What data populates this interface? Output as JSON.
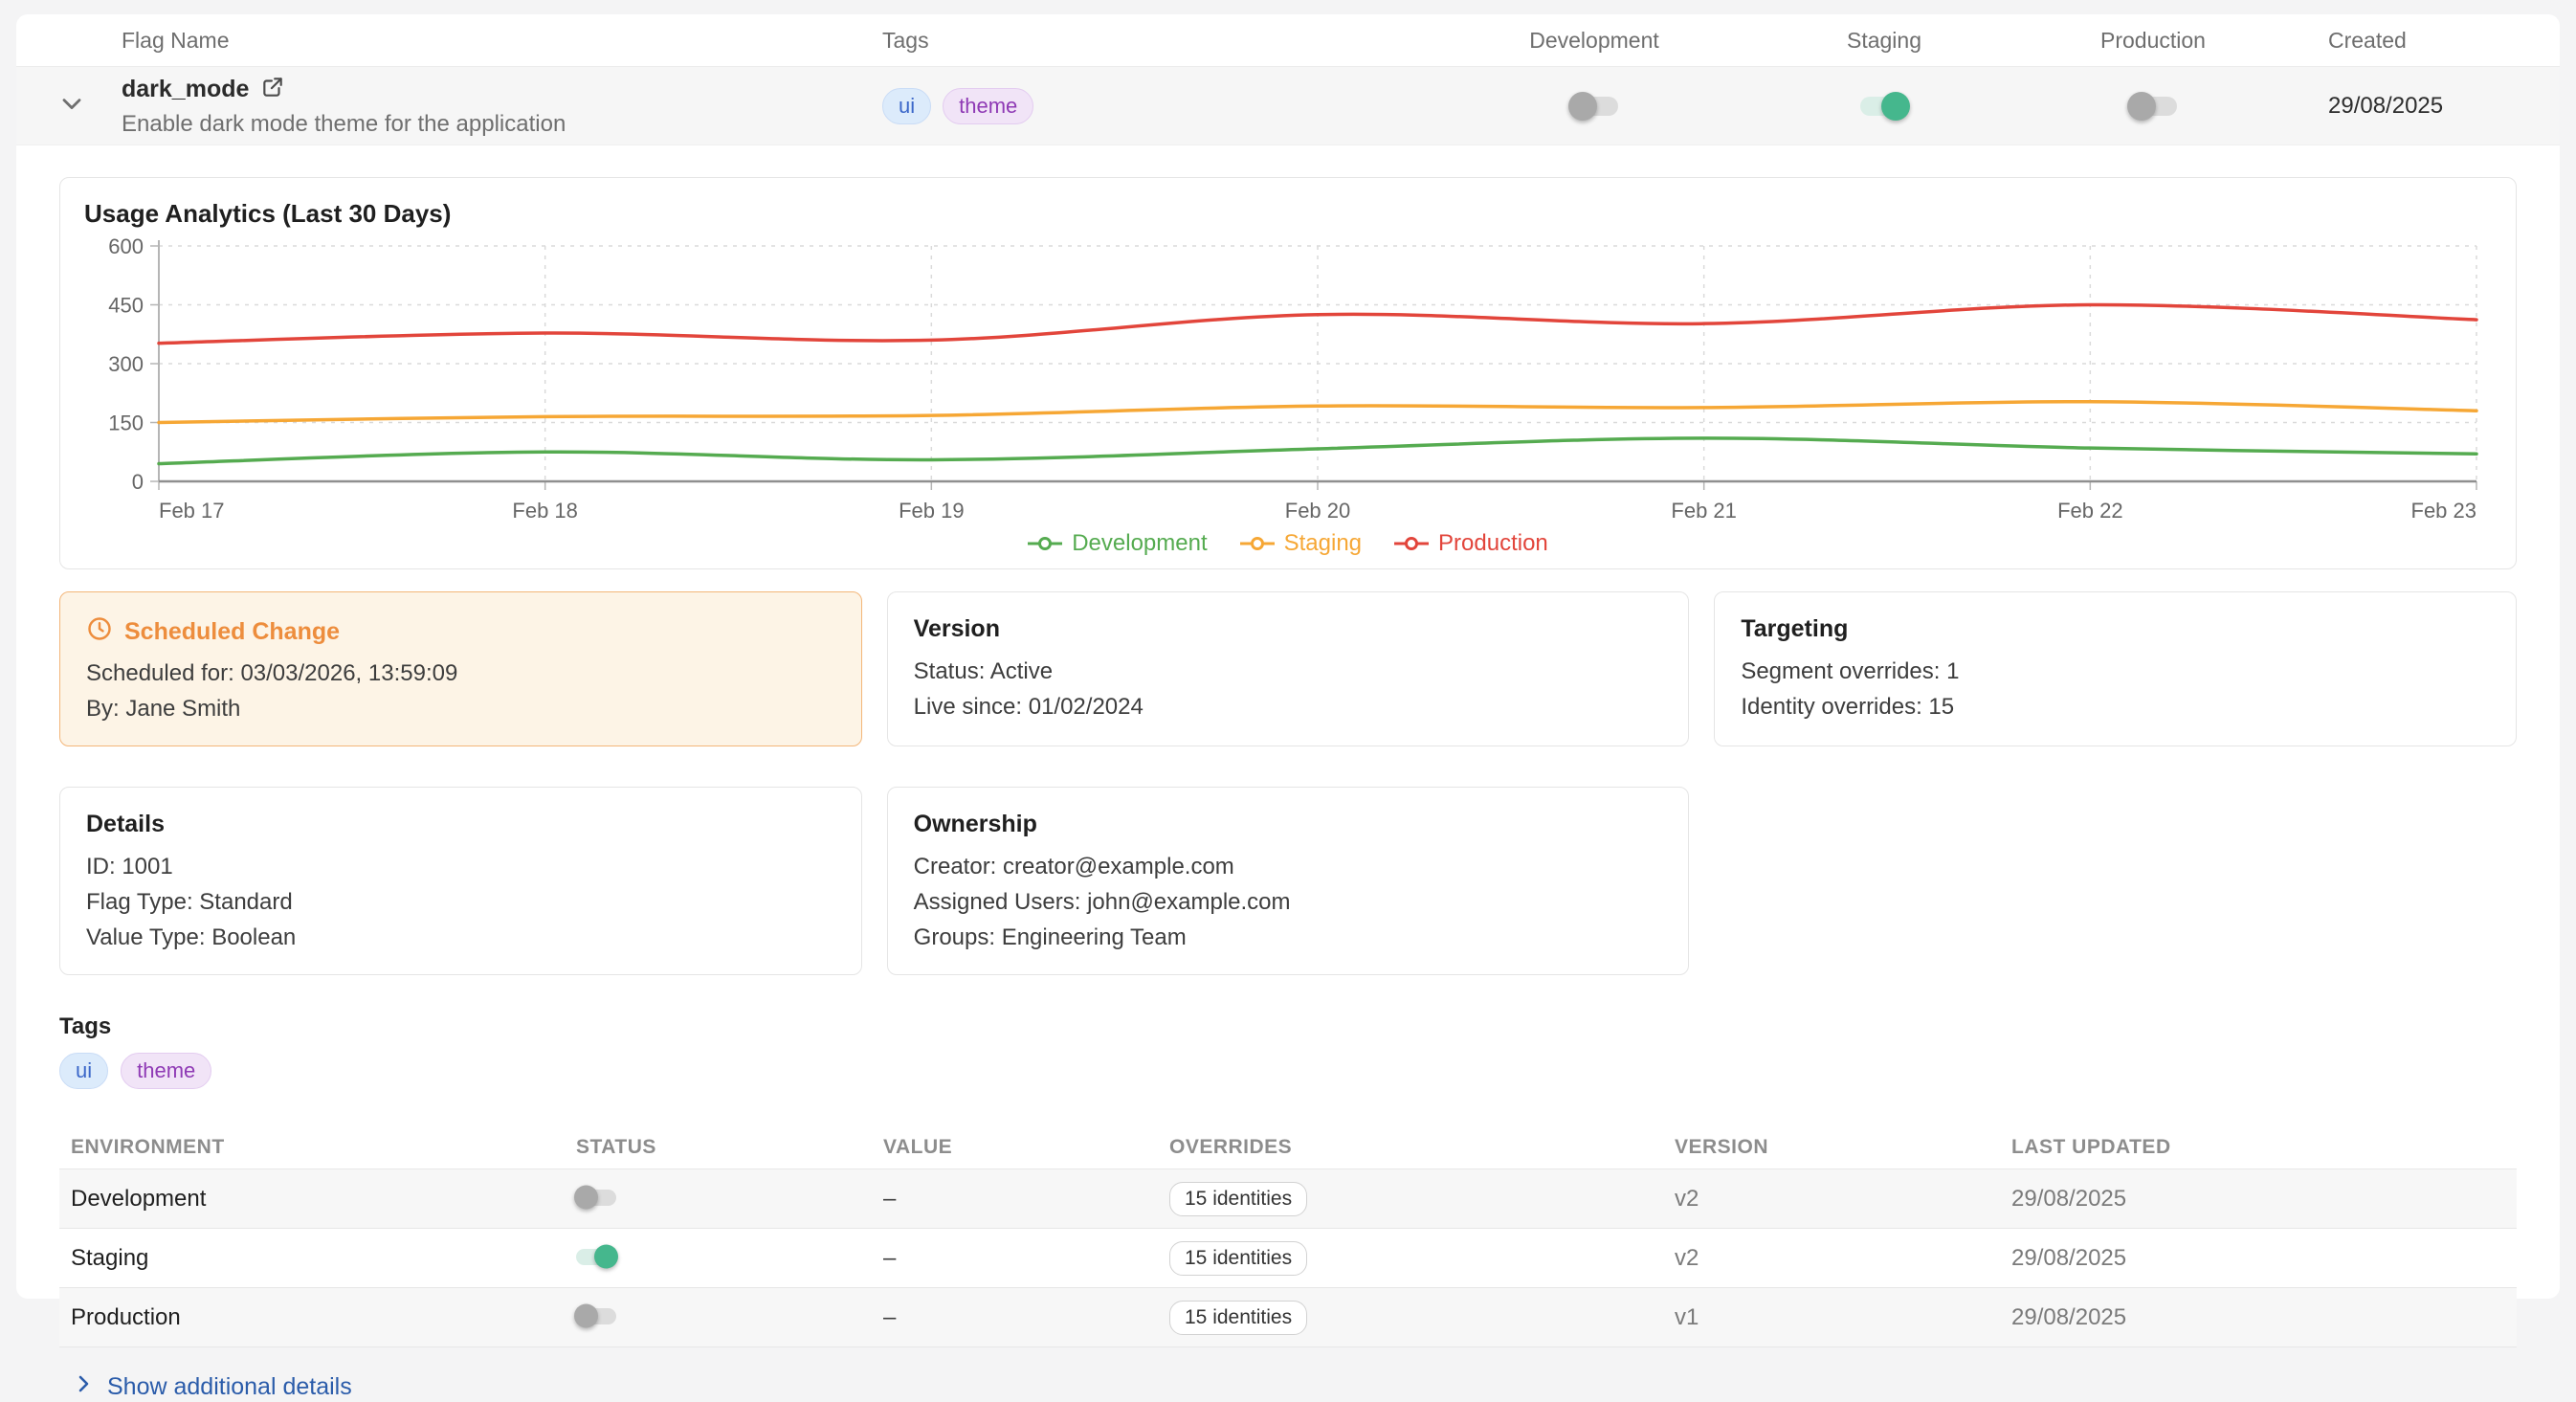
{
  "colors": {
    "link_blue": "#2b5caa",
    "toggle_on_green": "#45b78d",
    "scheduled_orange": "#ed8d3d"
  },
  "flag_table": {
    "columns": [
      "Flag Name",
      "Tags",
      "Development",
      "Staging",
      "Production",
      "Created"
    ],
    "row": {
      "name": "dark_mode",
      "description": "Enable dark mode theme for the application",
      "tags": [
        {
          "label": "ui",
          "variant": "blue"
        },
        {
          "label": "theme",
          "variant": "purple"
        }
      ],
      "toggles": {
        "development": false,
        "staging": true,
        "production": false
      },
      "created": "29/08/2025"
    }
  },
  "chart_data": {
    "type": "line",
    "title": "Usage Analytics (Last 30 Days)",
    "x": [
      "Feb 17",
      "Feb 18",
      "Feb 19",
      "Feb 20",
      "Feb 21",
      "Feb 22",
      "Feb 23"
    ],
    "series": [
      {
        "name": "Development",
        "color": "#55ab50",
        "values": [
          45,
          75,
          55,
          83,
          110,
          85,
          70
        ]
      },
      {
        "name": "Staging",
        "color": "#f6a735",
        "values": [
          150,
          165,
          168,
          192,
          188,
          203,
          180
        ]
      },
      {
        "name": "Production",
        "color": "#e2453b",
        "values": [
          352,
          378,
          360,
          425,
          402,
          450,
          412
        ]
      }
    ],
    "ylim": [
      0,
      600
    ],
    "yticks": [
      0,
      150,
      300,
      450,
      600
    ],
    "grid": true,
    "legend_position": "bottom"
  },
  "cards": {
    "scheduled": {
      "title": "Scheduled Change",
      "scheduled_for": "Scheduled for: 03/03/2026, 13:59:09",
      "by": "By: Jane Smith"
    },
    "version": {
      "title": "Version",
      "lines": [
        "Status: Active",
        "Live since: 01/02/2024"
      ]
    },
    "targeting": {
      "title": "Targeting",
      "lines": [
        "Segment overrides: 1",
        "Identity overrides: 15"
      ]
    },
    "details": {
      "title": "Details",
      "lines": [
        "ID: 1001",
        "Flag Type: Standard",
        "Value Type: Boolean"
      ]
    },
    "ownership": {
      "title": "Ownership",
      "lines": [
        "Creator: creator@example.com",
        "Assigned Users: john@example.com",
        "Groups: Engineering Team"
      ]
    }
  },
  "tags_section": {
    "title": "Tags",
    "tags": [
      {
        "label": "ui",
        "variant": "blue"
      },
      {
        "label": "theme",
        "variant": "purple"
      }
    ]
  },
  "environments_table": {
    "columns": [
      "ENVIRONMENT",
      "STATUS",
      "VALUE",
      "OVERRIDES",
      "VERSION",
      "LAST UPDATED"
    ],
    "rows": [
      {
        "environment": "Development",
        "status_on": false,
        "value": "–",
        "overrides": "15 identities",
        "version": "v2",
        "last_updated": "29/08/2025"
      },
      {
        "environment": "Staging",
        "status_on": true,
        "value": "–",
        "overrides": "15 identities",
        "version": "v2",
        "last_updated": "29/08/2025"
      },
      {
        "environment": "Production",
        "status_on": false,
        "value": "–",
        "overrides": "15 identities",
        "version": "v1",
        "last_updated": "29/08/2025"
      }
    ]
  },
  "footer": {
    "show_details": "Show additional details"
  }
}
